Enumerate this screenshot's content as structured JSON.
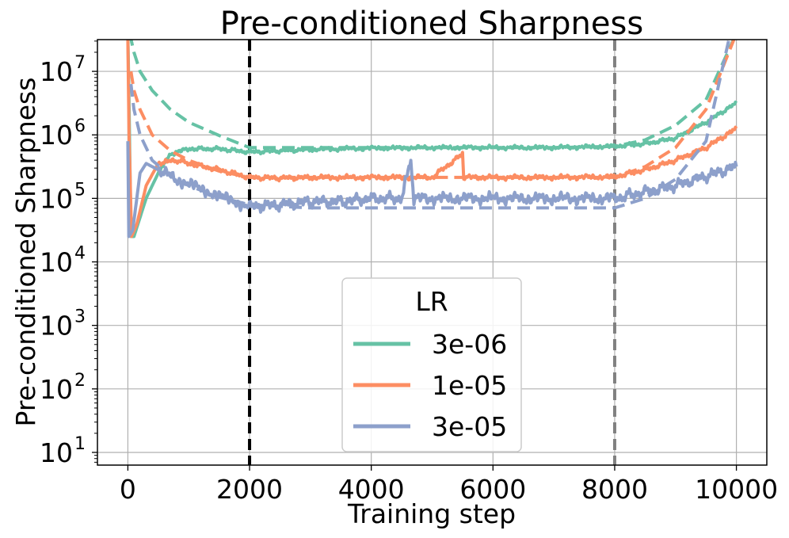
{
  "chart_data": {
    "type": "line",
    "title": "Pre-conditioned Sharpness",
    "xlabel": "Training step",
    "ylabel": "Pre-conditioned Sharpness",
    "yscale": "log",
    "xlim": [
      -500,
      10500
    ],
    "ylim_log10": [
      0.8,
      7.5
    ],
    "x_ticks": [
      {
        "value": 0,
        "label": "0"
      },
      {
        "value": 2000,
        "label": "2000"
      },
      {
        "value": 4000,
        "label": "4000"
      },
      {
        "value": 6000,
        "label": "6000"
      },
      {
        "value": 8000,
        "label": "8000"
      },
      {
        "value": 10000,
        "label": "10000"
      }
    ],
    "y_ticks": [
      {
        "exp": 1,
        "base": "10",
        "power": "1"
      },
      {
        "exp": 2,
        "base": "10",
        "power": "2"
      },
      {
        "exp": 3,
        "base": "10",
        "power": "3"
      },
      {
        "exp": 4,
        "base": "10",
        "power": "4"
      },
      {
        "exp": 5,
        "base": "10",
        "power": "5"
      },
      {
        "exp": 6,
        "base": "10",
        "power": "6"
      },
      {
        "exp": 7,
        "base": "10",
        "power": "7"
      }
    ],
    "grid": true,
    "vlines": [
      {
        "x": 2000,
        "color": "#000000",
        "style": "dashed"
      },
      {
        "x": 8000,
        "color": "#808080",
        "style": "dashed"
      }
    ],
    "legend": {
      "title": "LR",
      "position": "lower-center"
    },
    "series": [
      {
        "name": "3e-06",
        "color": "#66c2a5",
        "measured_log10": [
          [
            0,
            7.6
          ],
          [
            20,
            6.5
          ],
          [
            50,
            4.4
          ],
          [
            100,
            4.4
          ],
          [
            300,
            5.0
          ],
          [
            500,
            5.4
          ],
          [
            700,
            5.7
          ],
          [
            1000,
            5.78
          ],
          [
            1500,
            5.78
          ],
          [
            2000,
            5.73
          ],
          [
            2500,
            5.75
          ],
          [
            3000,
            5.77
          ],
          [
            4000,
            5.79
          ],
          [
            5000,
            5.8
          ],
          [
            6000,
            5.8
          ],
          [
            7000,
            5.8
          ],
          [
            8000,
            5.82
          ],
          [
            8500,
            5.86
          ],
          [
            9000,
            5.95
          ],
          [
            9500,
            6.2
          ],
          [
            10000,
            6.5
          ]
        ],
        "fit_log10": [
          [
            30,
            7.6
          ],
          [
            100,
            7.3
          ],
          [
            200,
            7.0
          ],
          [
            400,
            6.7
          ],
          [
            700,
            6.4
          ],
          [
            1000,
            6.2
          ],
          [
            1500,
            5.99
          ],
          [
            2000,
            5.8
          ],
          [
            3000,
            5.8
          ],
          [
            5000,
            5.8
          ],
          [
            7000,
            5.8
          ],
          [
            8000,
            5.82
          ],
          [
            8500,
            5.92
          ],
          [
            9000,
            6.15
          ],
          [
            9500,
            6.55
          ],
          [
            10000,
            7.6
          ]
        ]
      },
      {
        "name": "1e-05",
        "color": "#fc8d62",
        "measured_log10": [
          [
            0,
            7.5
          ],
          [
            20,
            6.0
          ],
          [
            60,
            4.4
          ],
          [
            150,
            4.6
          ],
          [
            300,
            5.2
          ],
          [
            500,
            5.55
          ],
          [
            800,
            5.6
          ],
          [
            1000,
            5.55
          ],
          [
            1500,
            5.45
          ],
          [
            2000,
            5.33
          ],
          [
            2500,
            5.32
          ],
          [
            3000,
            5.33
          ],
          [
            4000,
            5.33
          ],
          [
            5000,
            5.33
          ],
          [
            5500,
            5.7
          ],
          [
            5520,
            5.33
          ],
          [
            6000,
            5.33
          ],
          [
            7000,
            5.33
          ],
          [
            8000,
            5.34
          ],
          [
            8500,
            5.45
          ],
          [
            9000,
            5.6
          ],
          [
            9500,
            5.8
          ],
          [
            10000,
            6.1
          ]
        ],
        "fit_log10": [
          [
            50,
            7.0
          ],
          [
            100,
            6.7
          ],
          [
            200,
            6.4
          ],
          [
            400,
            6.0
          ],
          [
            700,
            5.75
          ],
          [
            1000,
            5.6
          ],
          [
            1500,
            5.43
          ],
          [
            2000,
            5.33
          ],
          [
            5000,
            5.33
          ],
          [
            8000,
            5.33
          ],
          [
            8500,
            5.5
          ],
          [
            9000,
            5.8
          ],
          [
            9500,
            6.4
          ],
          [
            10000,
            7.6
          ]
        ]
      },
      {
        "name": "3e-05",
        "color": "#8da0cb",
        "measured_log10": [
          [
            0,
            5.9
          ],
          [
            15,
            4.4
          ],
          [
            80,
            4.5
          ],
          [
            200,
            5.4
          ],
          [
            300,
            5.55
          ],
          [
            500,
            5.45
          ],
          [
            800,
            5.3
          ],
          [
            1200,
            5.15
          ],
          [
            1600,
            5.0
          ],
          [
            2000,
            4.87
          ],
          [
            2500,
            4.9
          ],
          [
            3000,
            4.95
          ],
          [
            3500,
            4.95
          ],
          [
            4000,
            5.0
          ],
          [
            4500,
            5.0
          ],
          [
            4650,
            5.6
          ],
          [
            4700,
            5.0
          ],
          [
            5000,
            5.0
          ],
          [
            6000,
            5.0
          ],
          [
            7000,
            5.0
          ],
          [
            8000,
            5.0
          ],
          [
            8500,
            5.1
          ],
          [
            9000,
            5.2
          ],
          [
            9500,
            5.35
          ],
          [
            10000,
            5.5
          ]
        ],
        "fit_log10": [
          [
            50,
            6.8
          ],
          [
            100,
            6.4
          ],
          [
            200,
            6.0
          ],
          [
            400,
            5.6
          ],
          [
            700,
            5.35
          ],
          [
            1000,
            5.2
          ],
          [
            1500,
            5.02
          ],
          [
            2000,
            4.9
          ],
          [
            3000,
            4.85
          ],
          [
            5000,
            4.85
          ],
          [
            7000,
            4.85
          ],
          [
            8000,
            4.85
          ],
          [
            8500,
            5.0
          ],
          [
            9000,
            5.3
          ],
          [
            9500,
            5.9
          ],
          [
            9900,
            7.6
          ]
        ]
      }
    ]
  }
}
